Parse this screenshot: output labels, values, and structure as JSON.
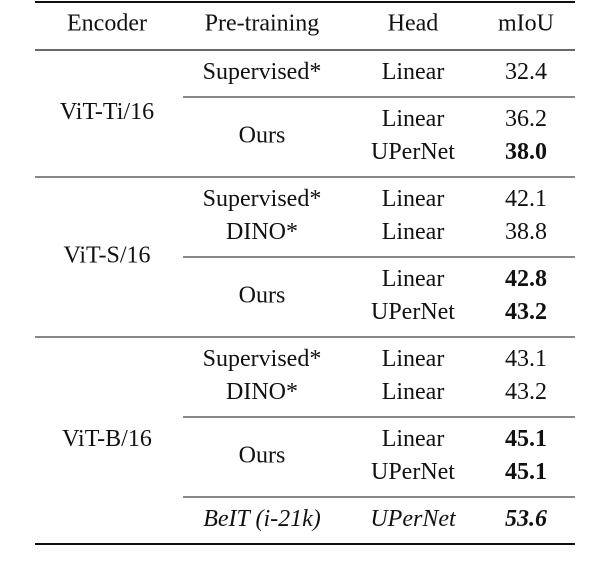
{
  "table": {
    "header": [
      "Encoder",
      "Pre-training",
      "Head",
      "mIoU"
    ],
    "groups": [
      {
        "encoder": "ViT-Ti/16",
        "subgroups": [
          {
            "pretraining": [
              "Supervised*"
            ],
            "rows": [
              {
                "head": "Linear",
                "miou": "32.4",
                "bold": false,
                "italic": false
              }
            ]
          },
          {
            "pretraining": [
              "Ours"
            ],
            "rows": [
              {
                "head": "Linear",
                "miou": "36.2",
                "bold": false,
                "italic": false
              },
              {
                "head": "UPerNet",
                "miou": "38.0",
                "bold": true,
                "italic": false
              }
            ]
          }
        ]
      },
      {
        "encoder": "ViT-S/16",
        "subgroups": [
          {
            "pretraining": [
              "Supervised*",
              "DINO*"
            ],
            "rows": [
              {
                "head": "Linear",
                "miou": "42.1",
                "bold": false,
                "italic": false
              },
              {
                "head": "Linear",
                "miou": "38.8",
                "bold": false,
                "italic": false
              }
            ]
          },
          {
            "pretraining": [
              "Ours"
            ],
            "rows": [
              {
                "head": "Linear",
                "miou": "42.8",
                "bold": true,
                "italic": false
              },
              {
                "head": "UPerNet",
                "miou": "43.2",
                "bold": true,
                "italic": false
              }
            ]
          }
        ]
      },
      {
        "encoder": "ViT-B/16",
        "subgroups": [
          {
            "pretraining": [
              "Supervised*",
              "DINO*"
            ],
            "rows": [
              {
                "head": "Linear",
                "miou": "43.1",
                "bold": false,
                "italic": false
              },
              {
                "head": "Linear",
                "miou": "43.2",
                "bold": false,
                "italic": false
              }
            ]
          },
          {
            "pretraining": [
              "Ours"
            ],
            "rows": [
              {
                "head": "Linear",
                "miou": "45.1",
                "bold": true,
                "italic": false
              },
              {
                "head": "UPerNet",
                "miou": "45.1",
                "bold": true,
                "italic": false
              }
            ]
          },
          {
            "pretraining": [
              "BeIT (i-21k)"
            ],
            "rows": [
              {
                "head": "UPerNet",
                "miou": "53.6",
                "bold": true,
                "italic": true
              }
            ]
          }
        ]
      }
    ]
  }
}
